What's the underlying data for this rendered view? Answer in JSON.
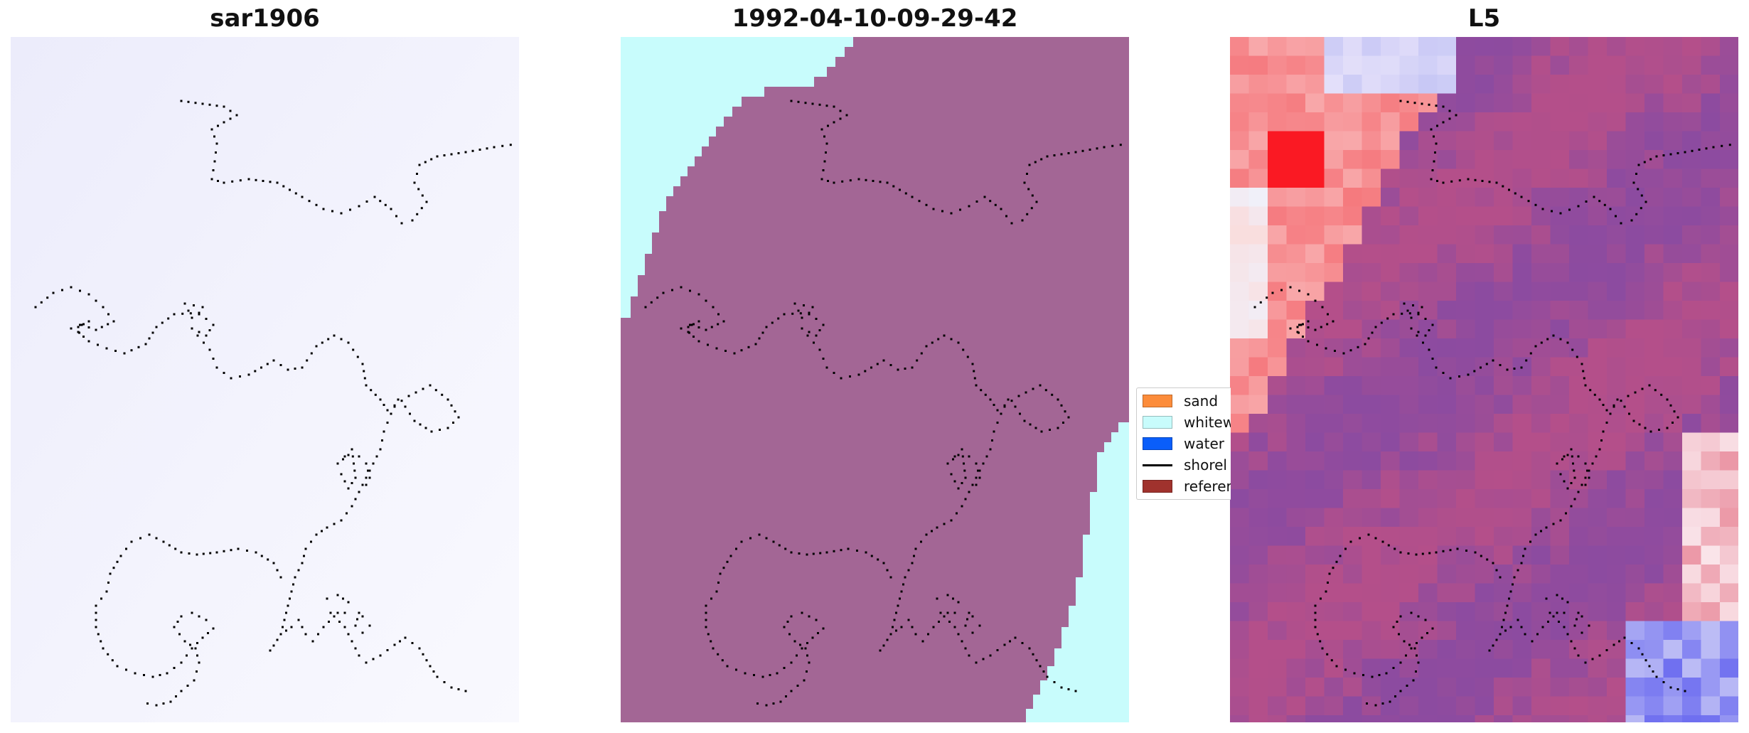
{
  "panels": [
    {
      "title": "sar1906"
    },
    {
      "title": "1992-04-10-09-29-42"
    },
    {
      "title": "L5"
    }
  ],
  "legend": {
    "items": [
      {
        "label": "sand",
        "color": "#fc8c3a"
      },
      {
        "label": "whitew",
        "color": "#c8fcfc"
      },
      {
        "label": "water",
        "color": "#0a5efa"
      },
      {
        "label": "shorel",
        "color": "#000000"
      },
      {
        "label": "referer",
        "color": "#a0322d"
      }
    ]
  },
  "colors": {
    "classification_land": "#a36695",
    "classification_whitewater": "#c8fcfc",
    "sar_background": "#f3f3fd"
  }
}
